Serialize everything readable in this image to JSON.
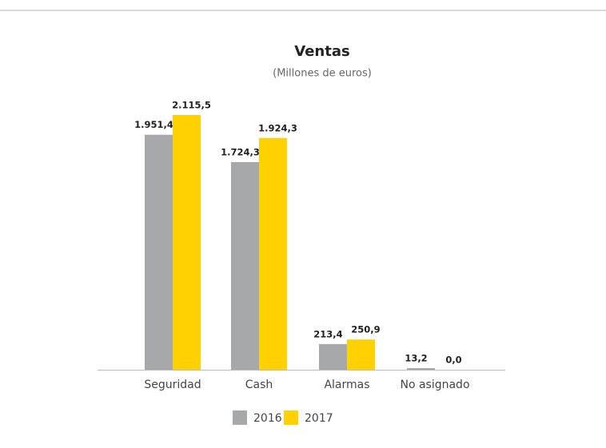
{
  "chart_data": {
    "type": "bar",
    "title": "Ventas",
    "subtitle": "(Millones de euros)",
    "categories": [
      "Seguridad",
      "Cash",
      "Alarmas",
      "No asignado"
    ],
    "series": [
      {
        "name": "2016",
        "color": "#a7a8aa",
        "values": [
          1951.4,
          1724.3,
          213.4,
          13.2
        ],
        "value_labels": [
          "1.951,4",
          "1.724,3",
          "213,4",
          "13,2"
        ]
      },
      {
        "name": "2017",
        "color": "#ffd100",
        "values": [
          2115.5,
          1924.3,
          250.9,
          0.0
        ],
        "value_labels": [
          "2.115,5",
          "1.924,3",
          "250,9",
          "0,0"
        ]
      }
    ],
    "legend": "bottom"
  }
}
